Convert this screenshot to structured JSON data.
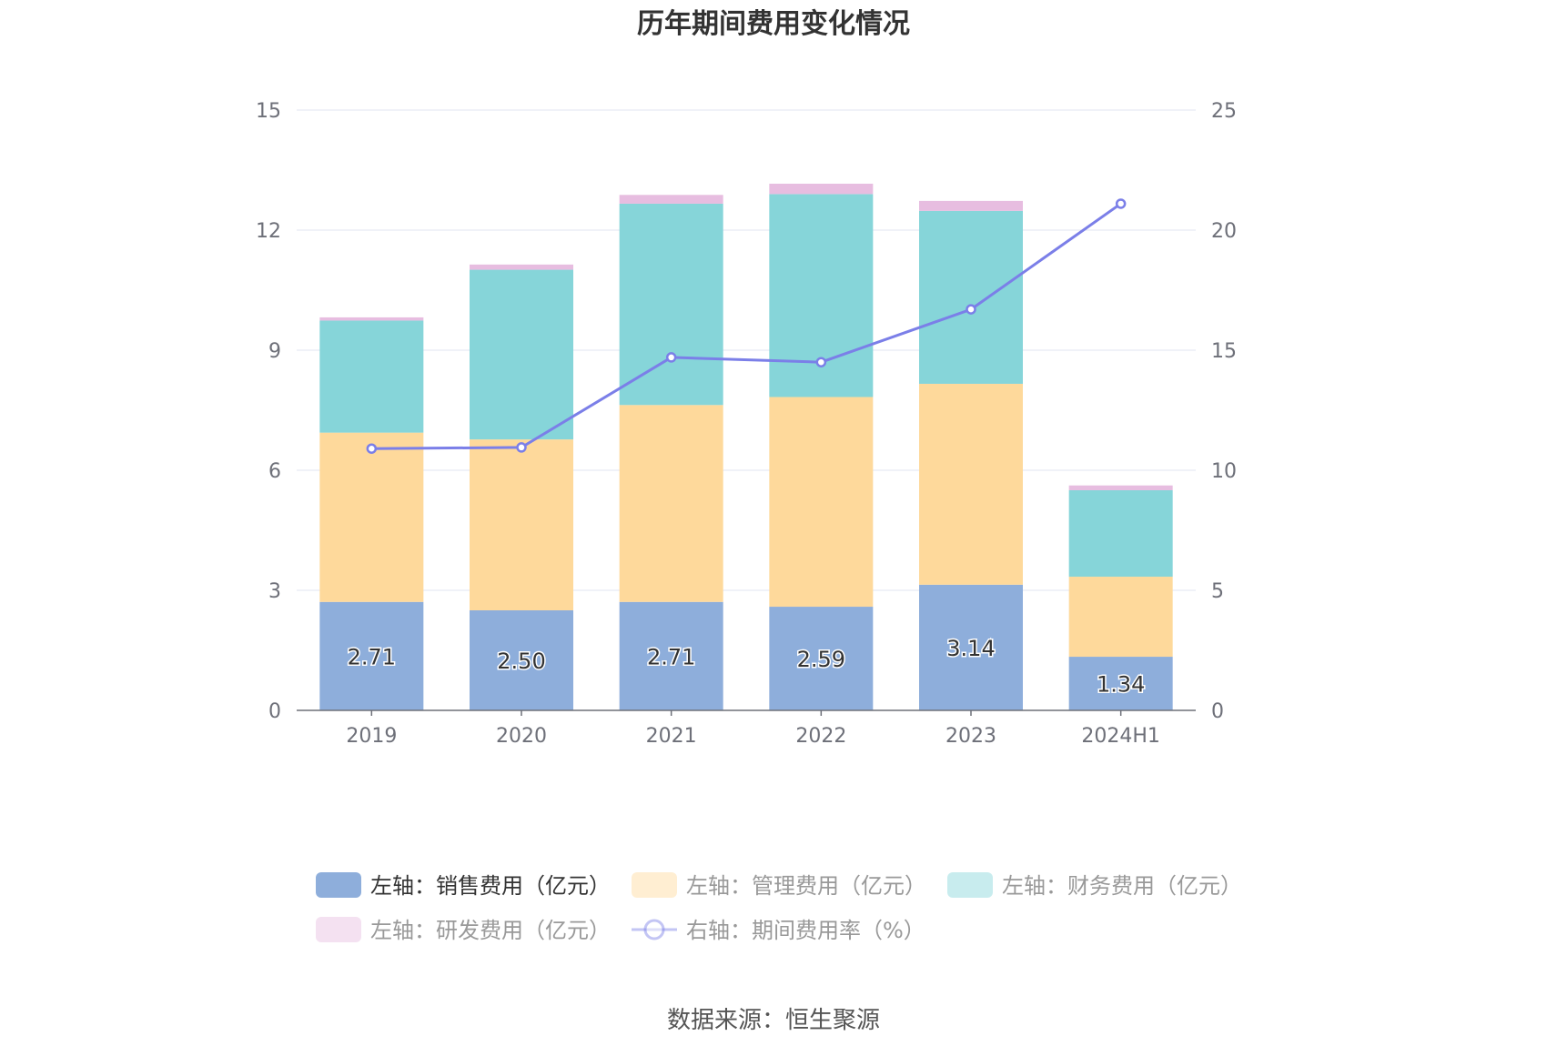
{
  "chart_data": {
    "type": "bar",
    "title": "历年期间费用变化情况",
    "categories": [
      "2019",
      "2020",
      "2021",
      "2022",
      "2023",
      "2024H1"
    ],
    "y_left": {
      "ticks": [
        "0",
        "3",
        "6",
        "9",
        "12",
        "15"
      ],
      "lim": [
        0,
        15
      ]
    },
    "y_right": {
      "ticks": [
        "0",
        "5",
        "10",
        "15",
        "20",
        "25"
      ],
      "lim": [
        0,
        25
      ]
    },
    "grid": true,
    "legend_position": "bottom",
    "series": [
      {
        "name": "左轴：销售费用（亿元）",
        "type": "bar",
        "axis": "left",
        "color": "#8eaedb",
        "values": [
          2.71,
          2.5,
          2.71,
          2.59,
          3.14,
          1.34
        ],
        "labels": [
          "2.71",
          "2.50",
          "2.71",
          "2.59",
          "3.14",
          "1.34"
        ]
      },
      {
        "name": "左轴：管理费用（亿元）",
        "type": "bar",
        "axis": "left",
        "color": "#fed99b",
        "values": [
          4.23,
          4.27,
          4.92,
          5.24,
          5.02,
          2.0
        ]
      },
      {
        "name": "左轴：财务费用（亿元）",
        "type": "bar",
        "axis": "left",
        "color": "#86d5d9",
        "values": [
          2.8,
          4.24,
          5.03,
          5.07,
          4.32,
          2.16
        ]
      },
      {
        "name": "左轴：研发费用（亿元）",
        "type": "bar",
        "axis": "left",
        "color": "#e7bde0",
        "values": [
          0.08,
          0.13,
          0.22,
          0.26,
          0.25,
          0.12
        ]
      },
      {
        "name": "右轴：期间费用率（%）",
        "type": "line",
        "axis": "right",
        "color": "#7b7fe8",
        "values": [
          10.9,
          10.95,
          14.7,
          14.5,
          16.7,
          21.1
        ]
      }
    ]
  },
  "source": "数据来源：恒生聚源"
}
